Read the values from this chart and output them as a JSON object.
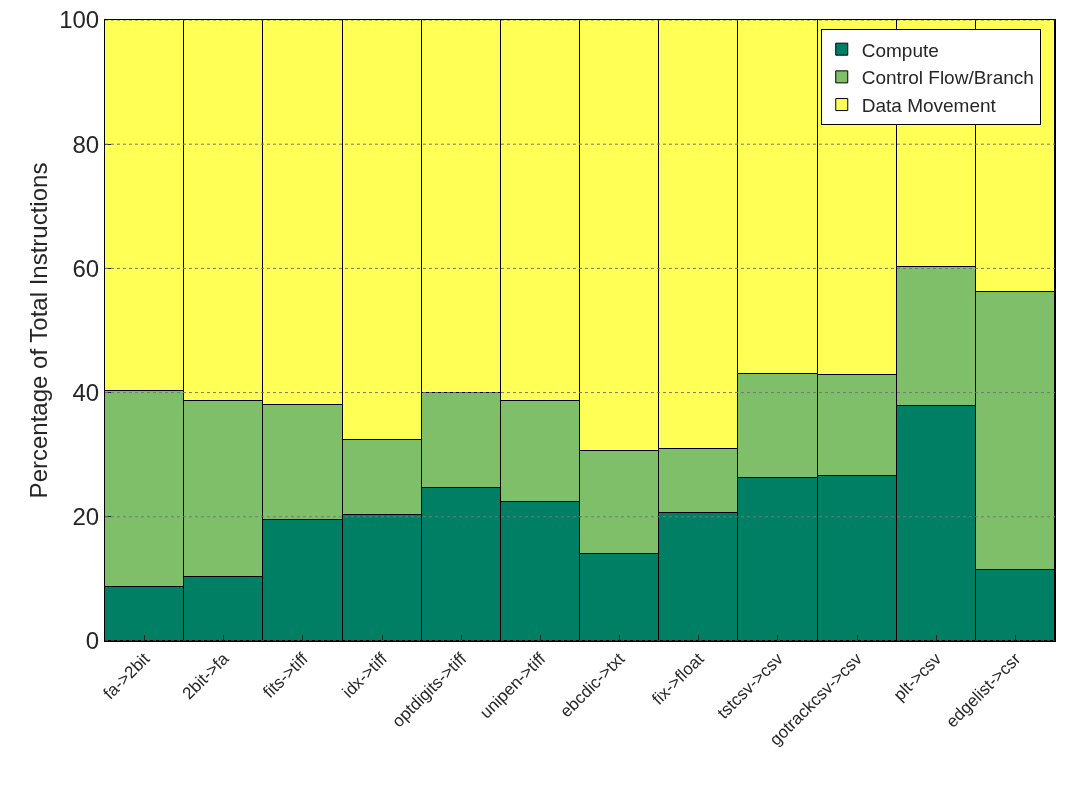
{
  "chart_data": {
    "type": "bar",
    "stacked": true,
    "ylabel": "Percentage of Total Instructions",
    "categories": [
      "fa->2bit",
      "2bit->fa",
      "fits->tiff",
      "idx->tiff",
      "optdigits->tiff",
      "unipen->tiff",
      "ebcdic->txt",
      "fix->float",
      "tstcsv->csv",
      "gotrackcsv->csv",
      "plt->csv",
      "edgelist->csr"
    ],
    "series": [
      {
        "name": "Compute",
        "color": "#017f65",
        "values": [
          8.7,
          10.3,
          19.5,
          20.3,
          24.6,
          22.4,
          14.0,
          20.6,
          26.2,
          26.6,
          37.8,
          11.4
        ]
      },
      {
        "name": "Control Flow/Branch",
        "color": "#80bf69",
        "values": [
          31.6,
          28.3,
          18.5,
          12.1,
          15.3,
          16.2,
          16.6,
          10.3,
          16.8,
          16.2,
          22.4,
          44.8
        ]
      },
      {
        "name": "Data Movement",
        "color": "#ffff55",
        "values": [
          59.7,
          61.4,
          62.0,
          67.6,
          60.1,
          61.4,
          69.4,
          69.1,
          57.0,
          57.2,
          39.8,
          43.8
        ]
      }
    ],
    "ylim": [
      0,
      100
    ],
    "yticks": [
      0,
      20,
      40,
      60,
      80,
      100
    ],
    "grid": "y",
    "legend": "top right"
  }
}
